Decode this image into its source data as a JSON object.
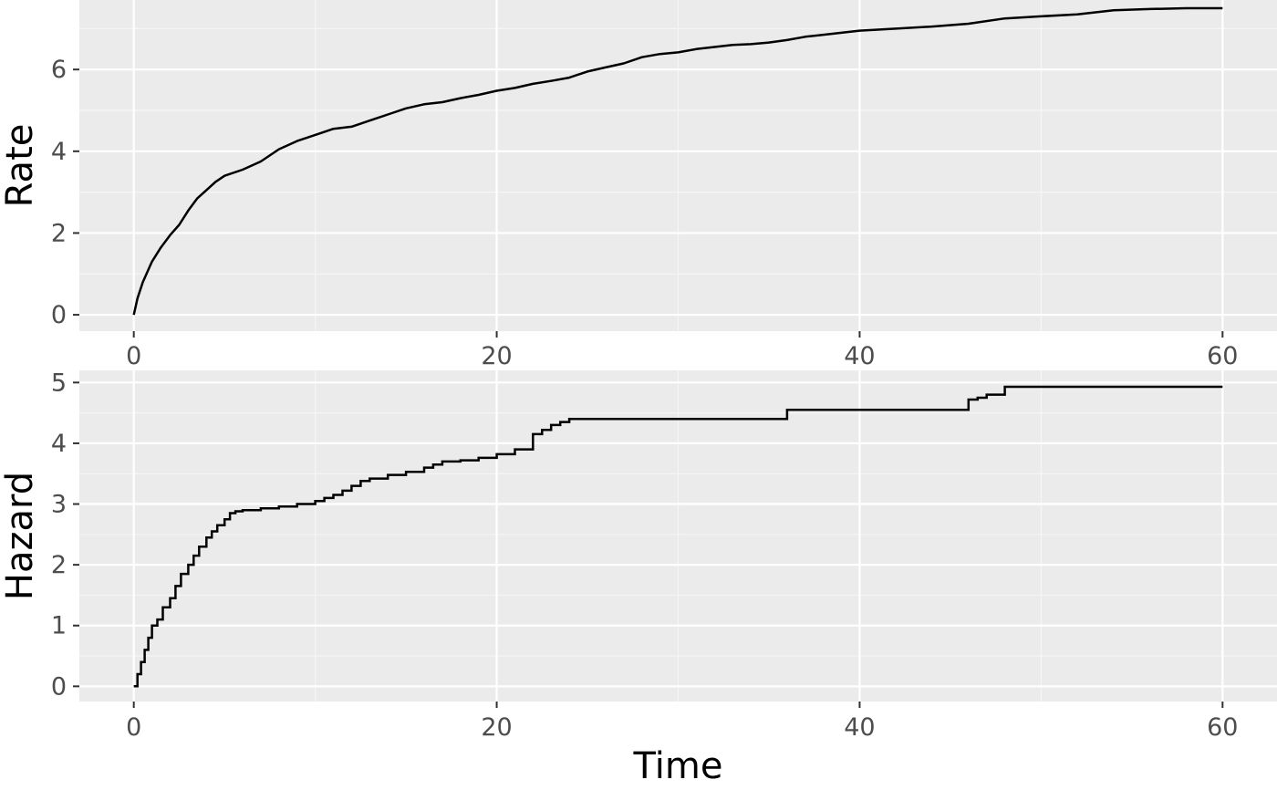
{
  "colors": {
    "panel_background": "#ebebeb",
    "grid_major": "#ffffff",
    "grid_minor": "#f5f5f5",
    "line": "#000000",
    "tick_label": "#4d4d4d"
  },
  "chart_data": [
    {
      "type": "line",
      "step": false,
      "title": "",
      "xlabel": "",
      "ylabel": "Rate",
      "xlim": [
        -3,
        63
      ],
      "ylim": [
        -0.4,
        7.7
      ],
      "xticks": [
        0,
        20,
        40,
        60
      ],
      "yticks": [
        0,
        2,
        4,
        6
      ],
      "xtick_labels": [
        "0",
        "20",
        "40",
        "60"
      ],
      "ytick_labels": [
        "0",
        "2",
        "4",
        "6"
      ],
      "grid": true,
      "legend": "none",
      "series": [
        {
          "x": [
            0,
            0.2,
            0.5,
            1,
            1.5,
            2,
            2.5,
            3,
            3.5,
            4,
            4.5,
            5,
            6,
            7,
            8,
            9,
            10,
            11,
            12,
            13,
            14,
            15,
            16,
            17,
            18,
            19,
            20,
            21,
            22,
            23,
            24,
            25,
            26,
            27,
            28,
            29,
            30,
            31,
            32,
            33,
            34,
            35,
            36,
            37,
            38,
            39,
            40,
            42,
            44,
            46,
            48,
            50,
            52,
            54,
            56,
            58,
            60
          ],
          "y": [
            0,
            0.4,
            0.8,
            1.3,
            1.65,
            1.95,
            2.2,
            2.55,
            2.85,
            3.05,
            3.25,
            3.4,
            3.55,
            3.75,
            4.05,
            4.25,
            4.4,
            4.55,
            4.6,
            4.75,
            4.9,
            5.05,
            5.15,
            5.2,
            5.3,
            5.38,
            5.48,
            5.55,
            5.65,
            5.72,
            5.8,
            5.95,
            6.05,
            6.15,
            6.3,
            6.38,
            6.42,
            6.5,
            6.55,
            6.6,
            6.62,
            6.66,
            6.72,
            6.8,
            6.85,
            6.9,
            6.95,
            7.0,
            7.05,
            7.12,
            7.25,
            7.3,
            7.35,
            7.45,
            7.48,
            7.5,
            7.5
          ]
        }
      ]
    },
    {
      "type": "line",
      "step": true,
      "title": "",
      "xlabel": "Time",
      "ylabel": "Hazard",
      "xlim": [
        -3,
        63
      ],
      "ylim": [
        -0.25,
        5.2
      ],
      "xticks": [
        0,
        20,
        40,
        60
      ],
      "yticks": [
        0,
        1,
        2,
        3,
        4,
        5
      ],
      "xtick_labels": [
        "0",
        "20",
        "40",
        "60"
      ],
      "ytick_labels": [
        "0",
        "1",
        "2",
        "3",
        "4",
        "5"
      ],
      "grid": true,
      "legend": "none",
      "series": [
        {
          "x": [
            0,
            0.2,
            0.4,
            0.6,
            0.8,
            1,
            1.3,
            1.6,
            2,
            2.3,
            2.6,
            3,
            3.3,
            3.6,
            4,
            4.3,
            4.6,
            5,
            5.3,
            5.6,
            6,
            7,
            8,
            9,
            10,
            10.5,
            11,
            11.5,
            12,
            12.5,
            13,
            14,
            15,
            16,
            16.5,
            17,
            18,
            19,
            20,
            21,
            22,
            22.5,
            23,
            23.5,
            24,
            30,
            36,
            40,
            46,
            46.5,
            47,
            48,
            50,
            60
          ],
          "y": [
            0,
            0.2,
            0.4,
            0.6,
            0.8,
            1.0,
            1.1,
            1.3,
            1.45,
            1.65,
            1.85,
            2.0,
            2.15,
            2.3,
            2.45,
            2.55,
            2.65,
            2.75,
            2.85,
            2.88,
            2.9,
            2.93,
            2.96,
            3.0,
            3.05,
            3.1,
            3.15,
            3.22,
            3.3,
            3.38,
            3.42,
            3.48,
            3.53,
            3.6,
            3.65,
            3.7,
            3.72,
            3.76,
            3.82,
            3.9,
            4.15,
            4.22,
            4.3,
            4.35,
            4.4,
            4.4,
            4.55,
            4.55,
            4.72,
            4.75,
            4.8,
            4.93,
            4.93,
            4.93
          ]
        }
      ]
    }
  ]
}
